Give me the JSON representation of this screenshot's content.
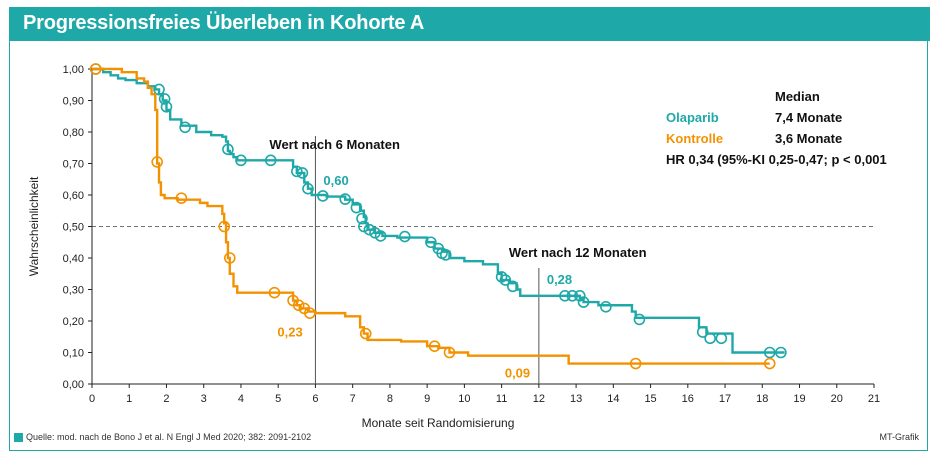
{
  "title": "Progressionsfreies Überleben in Kohorte A",
  "colors": {
    "banner": "#1fa8a8",
    "olaparib": "#1fa8a8",
    "kontrolle": "#f39200",
    "axis": "#222222",
    "reference_line": "#555555"
  },
  "source": "Quelle: mod. nach de Bono J et al. N Engl J Med 2020; 382: 2091-2102",
  "credit": "MT-Grafik",
  "legend": {
    "header": "Median",
    "entries": [
      {
        "name": "Olaparib",
        "median": "7,4 Monate",
        "color": "#1fa8a8"
      },
      {
        "name": "Kontrolle",
        "median": "3,6 Monate",
        "color": "#f39200"
      }
    ],
    "hr": "HR 0,34 (95%-KI 0,25-0,47; p < 0,001"
  },
  "chart_data": {
    "type": "line",
    "subtype": "kaplan-meier-step",
    "xlabel": "Monate seit Randomisierung",
    "ylabel": "Wahrscheinlichkeit",
    "xlim": [
      0,
      21
    ],
    "ylim": [
      0,
      1
    ],
    "x_ticks": [
      "0",
      "1",
      "2",
      "3",
      "4",
      "5",
      "6",
      "7",
      "8",
      "9",
      "10",
      "11",
      "12",
      "13",
      "14",
      "15",
      "16",
      "17",
      "18",
      "19",
      "20",
      "21"
    ],
    "y_ticks": [
      "0,00",
      "0,10",
      "0,20",
      "0,30",
      "0,40",
      "0,50",
      "0,60",
      "0,70",
      "0,80",
      "0,90",
      "1,00"
    ],
    "median_line": 0.5,
    "series": [
      {
        "name": "Olaparib",
        "color": "#1fa8a8",
        "steps": [
          [
            0,
            1
          ],
          [
            0.3,
            0.99
          ],
          [
            0.5,
            0.98
          ],
          [
            0.7,
            0.97
          ],
          [
            0.9,
            0.965
          ],
          [
            1.2,
            0.955
          ],
          [
            1.5,
            0.945
          ],
          [
            1.7,
            0.935
          ],
          [
            1.8,
            0.92
          ],
          [
            1.9,
            0.9
          ],
          [
            2.0,
            0.87
          ],
          [
            2.1,
            0.84
          ],
          [
            2.4,
            0.82
          ],
          [
            2.8,
            0.8
          ],
          [
            3.2,
            0.79
          ],
          [
            3.5,
            0.785
          ],
          [
            3.6,
            0.77
          ],
          [
            3.65,
            0.74
          ],
          [
            3.7,
            0.73
          ],
          [
            3.8,
            0.72
          ],
          [
            3.9,
            0.71
          ],
          [
            5.4,
            0.69
          ],
          [
            5.5,
            0.67
          ],
          [
            5.7,
            0.64
          ],
          [
            5.8,
            0.62
          ],
          [
            5.9,
            0.6
          ],
          [
            6.3,
            0.595
          ],
          [
            6.8,
            0.585
          ],
          [
            7.0,
            0.57
          ],
          [
            7.2,
            0.55
          ],
          [
            7.3,
            0.53
          ],
          [
            7.35,
            0.51
          ],
          [
            7.4,
            0.49
          ],
          [
            7.6,
            0.48
          ],
          [
            7.8,
            0.47
          ],
          [
            8.2,
            0.465
          ],
          [
            9.0,
            0.45
          ],
          [
            9.2,
            0.43
          ],
          [
            9.4,
            0.42
          ],
          [
            9.6,
            0.4
          ],
          [
            10.0,
            0.39
          ],
          [
            10.5,
            0.38
          ],
          [
            10.9,
            0.35
          ],
          [
            11.0,
            0.33
          ],
          [
            11.2,
            0.32
          ],
          [
            11.4,
            0.3
          ],
          [
            11.5,
            0.28
          ],
          [
            12.8,
            0.28
          ],
          [
            13.1,
            0.27
          ],
          [
            13.2,
            0.26
          ],
          [
            13.6,
            0.25
          ],
          [
            14.5,
            0.23
          ],
          [
            14.6,
            0.21
          ],
          [
            15.5,
            0.21
          ],
          [
            16.3,
            0.18
          ],
          [
            16.5,
            0.16
          ],
          [
            17.2,
            0.1
          ]
        ],
        "end": 18.6,
        "censor": [
          [
            0.1,
            1.0
          ],
          [
            1.8,
            0.935
          ],
          [
            1.95,
            0.905
          ],
          [
            2.0,
            0.88
          ],
          [
            2.5,
            0.815
          ],
          [
            3.65,
            0.745
          ],
          [
            4.0,
            0.71
          ],
          [
            4.8,
            0.71
          ],
          [
            5.5,
            0.675
          ],
          [
            5.65,
            0.67
          ],
          [
            5.8,
            0.62
          ],
          [
            6.2,
            0.597
          ],
          [
            6.8,
            0.587
          ],
          [
            7.1,
            0.56
          ],
          [
            7.25,
            0.525
          ],
          [
            7.3,
            0.5
          ],
          [
            7.45,
            0.49
          ],
          [
            7.6,
            0.48
          ],
          [
            7.75,
            0.47
          ],
          [
            8.4,
            0.468
          ],
          [
            9.1,
            0.45
          ],
          [
            9.3,
            0.43
          ],
          [
            9.4,
            0.415
          ],
          [
            9.5,
            0.41
          ],
          [
            11.0,
            0.34
          ],
          [
            11.1,
            0.33
          ],
          [
            11.3,
            0.31
          ],
          [
            12.7,
            0.28
          ],
          [
            12.9,
            0.28
          ],
          [
            13.1,
            0.28
          ],
          [
            13.2,
            0.26
          ],
          [
            13.8,
            0.245
          ],
          [
            14.7,
            0.205
          ],
          [
            16.4,
            0.165
          ],
          [
            16.6,
            0.145
          ],
          [
            16.9,
            0.145
          ],
          [
            18.2,
            0.1
          ],
          [
            18.5,
            0.1
          ]
        ]
      },
      {
        "name": "Kontrolle",
        "color": "#f39200",
        "steps": [
          [
            0,
            1
          ],
          [
            0.8,
            0.99
          ],
          [
            1.2,
            0.97
          ],
          [
            1.4,
            0.96
          ],
          [
            1.5,
            0.94
          ],
          [
            1.6,
            0.92
          ],
          [
            1.7,
            0.87
          ],
          [
            1.75,
            0.7
          ],
          [
            1.8,
            0.64
          ],
          [
            1.85,
            0.6
          ],
          [
            1.95,
            0.59
          ],
          [
            2.3,
            0.585
          ],
          [
            2.9,
            0.575
          ],
          [
            3.1,
            0.565
          ],
          [
            3.5,
            0.54
          ],
          [
            3.55,
            0.51
          ],
          [
            3.6,
            0.45
          ],
          [
            3.65,
            0.4
          ],
          [
            3.7,
            0.35
          ],
          [
            3.8,
            0.31
          ],
          [
            3.9,
            0.29
          ],
          [
            5.4,
            0.265
          ],
          [
            5.5,
            0.25
          ],
          [
            5.6,
            0.24
          ],
          [
            5.8,
            0.23
          ],
          [
            6.0,
            0.225
          ],
          [
            6.8,
            0.215
          ],
          [
            7.2,
            0.18
          ],
          [
            7.3,
            0.16
          ],
          [
            7.4,
            0.14
          ],
          [
            8.3,
            0.135
          ],
          [
            9.0,
            0.12
          ],
          [
            9.3,
            0.115
          ],
          [
            9.6,
            0.1
          ],
          [
            10.1,
            0.09
          ],
          [
            12.8,
            0.065
          ]
        ],
        "end": 18.2,
        "censor": [
          [
            0.1,
            1.0
          ],
          [
            1.75,
            0.705
          ],
          [
            2.4,
            0.59
          ],
          [
            3.55,
            0.5
          ],
          [
            3.7,
            0.4
          ],
          [
            4.9,
            0.29
          ],
          [
            5.4,
            0.265
          ],
          [
            5.55,
            0.25
          ],
          [
            5.7,
            0.24
          ],
          [
            5.85,
            0.225
          ],
          [
            7.35,
            0.16
          ],
          [
            9.2,
            0.12
          ],
          [
            9.6,
            0.1
          ],
          [
            14.6,
            0.065
          ],
          [
            18.2,
            0.065
          ]
        ]
      }
    ],
    "annotations": [
      {
        "label": "Wert nach 6 Monaten",
        "x": 6
      },
      {
        "label": "Wert nach 12 Monaten",
        "x": 12
      }
    ],
    "value_labels": [
      {
        "text": "0,60",
        "series": "Olaparib",
        "x": 6,
        "y": 0.6
      },
      {
        "text": "0,23",
        "series": "Kontrolle",
        "x": 6,
        "y": 0.23
      },
      {
        "text": "0,28",
        "series": "Olaparib",
        "x": 12,
        "y": 0.28
      },
      {
        "text": "0,09",
        "series": "Kontrolle",
        "x": 12,
        "y": 0.09
      }
    ]
  }
}
